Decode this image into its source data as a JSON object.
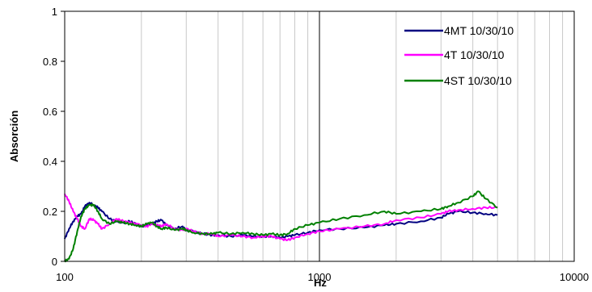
{
  "chart_data": {
    "type": "line",
    "title": "",
    "xlabel": "Hz",
    "ylabel": "Absorción",
    "xscale": "log",
    "xlim": [
      100,
      10000
    ],
    "ylim": [
      0,
      1
    ],
    "x_ticks": [
      100,
      1000,
      10000
    ],
    "x_tick_labels": [
      "100",
      "1000",
      "10000"
    ],
    "y_ticks": [
      0,
      0.2,
      0.4,
      0.6,
      0.8,
      1
    ],
    "y_tick_labels": [
      "0",
      "0.2",
      "0.4",
      "0.6",
      "0.8",
      "1"
    ],
    "grid": true,
    "legend_position": "top-right",
    "series": [
      {
        "name": "4MT 10/30/10",
        "color": "#000080",
        "x": [
          100,
          104,
          108,
          112,
          116,
          120,
          125,
          130,
          135,
          140,
          150,
          160,
          170,
          180,
          190,
          200,
          210,
          220,
          230,
          240,
          250,
          270,
          290,
          300,
          320,
          350,
          380,
          400,
          450,
          500,
          550,
          600,
          650,
          700,
          750,
          800,
          900,
          1000,
          1200,
          1500,
          1800,
          2000,
          2500,
          3000,
          3200,
          3500,
          4000,
          4500,
          5000
        ],
        "y": [
          0.09,
          0.13,
          0.16,
          0.18,
          0.19,
          0.22,
          0.235,
          0.225,
          0.215,
          0.2,
          0.17,
          0.16,
          0.155,
          0.16,
          0.15,
          0.14,
          0.145,
          0.15,
          0.16,
          0.165,
          0.145,
          0.13,
          0.14,
          0.125,
          0.12,
          0.11,
          0.105,
          0.105,
          0.1,
          0.105,
          0.1,
          0.1,
          0.1,
          0.095,
          0.1,
          0.105,
          0.115,
          0.125,
          0.13,
          0.135,
          0.145,
          0.15,
          0.16,
          0.175,
          0.19,
          0.2,
          0.195,
          0.19,
          0.185
        ]
      },
      {
        "name": "4T 10/30/10",
        "color": "#FF00FF",
        "x": [
          100,
          104,
          108,
          112,
          116,
          120,
          125,
          130,
          135,
          140,
          150,
          160,
          170,
          180,
          190,
          200,
          210,
          220,
          230,
          240,
          250,
          270,
          290,
          300,
          320,
          350,
          380,
          400,
          450,
          500,
          550,
          600,
          650,
          700,
          750,
          800,
          900,
          1000,
          1200,
          1500,
          1800,
          2000,
          2500,
          3000,
          3200,
          3500,
          4000,
          4500,
          5000
        ],
        "y": [
          0.27,
          0.24,
          0.2,
          0.17,
          0.14,
          0.13,
          0.17,
          0.165,
          0.15,
          0.13,
          0.15,
          0.17,
          0.16,
          0.155,
          0.15,
          0.145,
          0.14,
          0.15,
          0.145,
          0.14,
          0.15,
          0.13,
          0.125,
          0.13,
          0.12,
          0.11,
          0.11,
          0.1,
          0.105,
          0.1,
          0.095,
          0.1,
          0.1,
          0.09,
          0.085,
          0.095,
          0.11,
          0.12,
          0.13,
          0.14,
          0.15,
          0.165,
          0.175,
          0.19,
          0.2,
          0.205,
          0.21,
          0.215,
          0.215
        ]
      },
      {
        "name": "4ST 10/30/10",
        "color": "#008000",
        "x": [
          100,
          104,
          108,
          112,
          116,
          120,
          125,
          130,
          135,
          140,
          150,
          160,
          170,
          180,
          190,
          200,
          210,
          220,
          230,
          240,
          250,
          270,
          290,
          300,
          320,
          350,
          380,
          400,
          450,
          500,
          550,
          600,
          650,
          700,
          750,
          800,
          900,
          1000,
          1200,
          1500,
          1800,
          2000,
          2500,
          3000,
          3200,
          3500,
          4000,
          4200,
          4500,
          5000
        ],
        "y": [
          0.0,
          0.01,
          0.05,
          0.12,
          0.18,
          0.21,
          0.225,
          0.225,
          0.2,
          0.17,
          0.15,
          0.16,
          0.155,
          0.15,
          0.145,
          0.14,
          0.15,
          0.155,
          0.14,
          0.13,
          0.135,
          0.125,
          0.13,
          0.125,
          0.115,
          0.11,
          0.11,
          0.115,
          0.11,
          0.115,
          0.11,
          0.105,
          0.11,
          0.105,
          0.11,
          0.13,
          0.145,
          0.155,
          0.17,
          0.185,
          0.2,
          0.19,
          0.2,
          0.21,
          0.22,
          0.235,
          0.26,
          0.28,
          0.25,
          0.215
        ]
      }
    ]
  }
}
